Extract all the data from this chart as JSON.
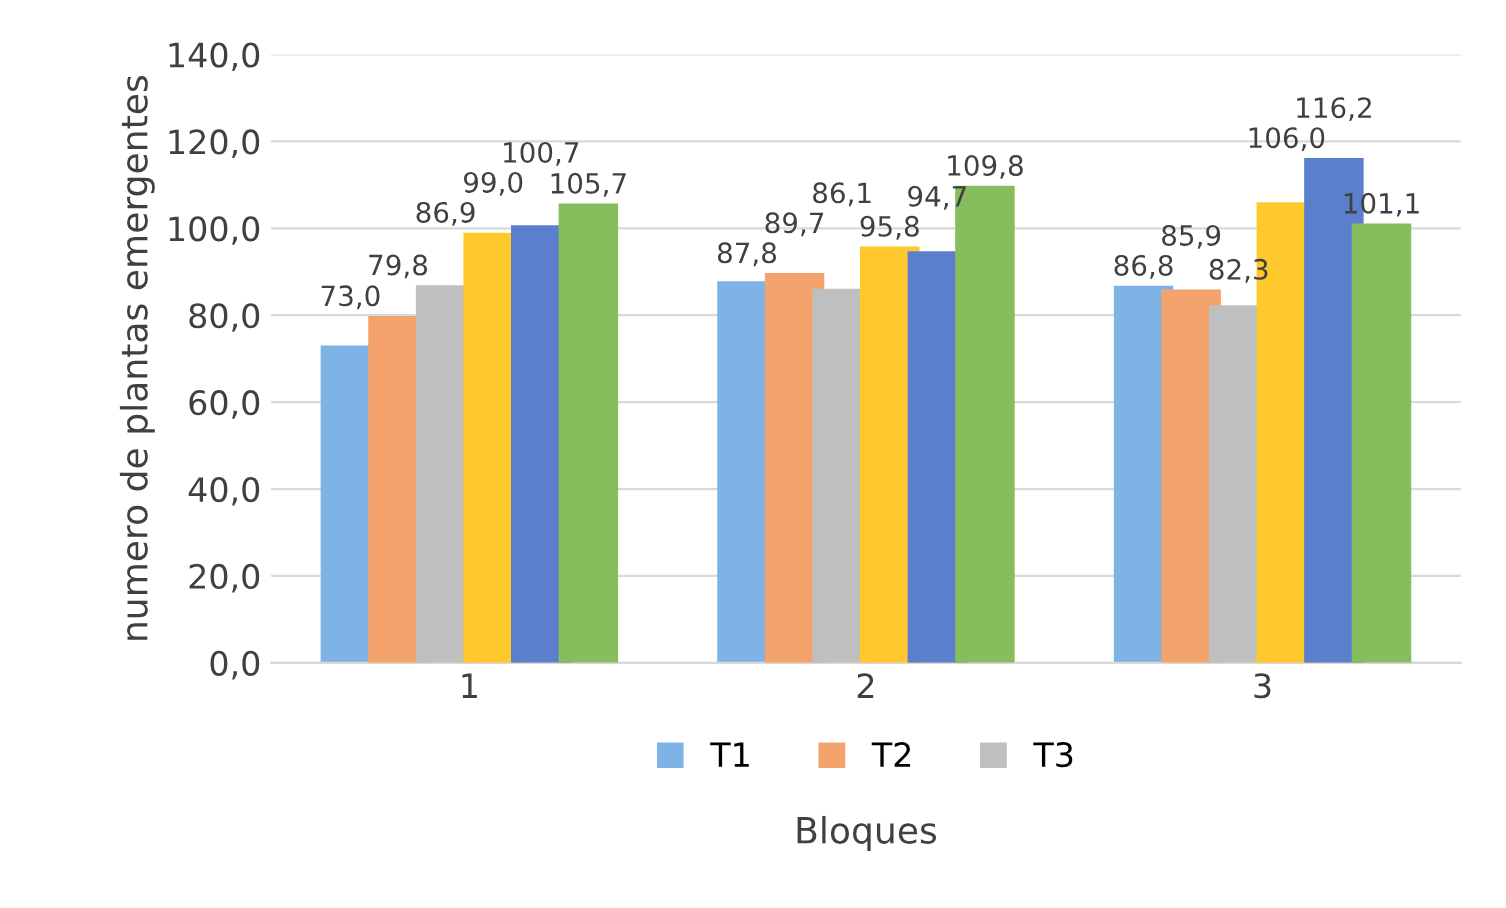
{
  "chart_data": {
    "type": "bar",
    "categories": [
      "1",
      "2",
      "3"
    ],
    "series": [
      {
        "name": "T1",
        "color": "#7fb2e5",
        "values": [
          73.0,
          87.8,
          86.8
        ],
        "value_labels": [
          "73,0",
          "87,8",
          "86,8"
        ]
      },
      {
        "name": "T2",
        "color": "#f4a36c",
        "values": [
          79.8,
          89.7,
          85.9
        ],
        "value_labels": [
          "79,8",
          "89,7",
          "85,9"
        ]
      },
      {
        "name": "T3",
        "color": "#bfbfbf",
        "values": [
          86.9,
          86.1,
          82.3
        ],
        "value_labels": [
          "86,9",
          "86,1",
          "82,3"
        ]
      },
      {
        "color": "#ffc92e",
        "values": [
          99.0,
          95.8,
          106.0
        ],
        "value_labels": [
          "99,0",
          "95,8",
          "106,0"
        ]
      },
      {
        "color": "#5b7fcc",
        "values": [
          100.7,
          94.7,
          116.2
        ],
        "value_labels": [
          "100,7",
          "94,7",
          "116,2"
        ]
      },
      {
        "color": "#86be5e",
        "values": [
          105.7,
          109.8,
          101.1
        ],
        "value_labels": [
          "105,7",
          "109,8",
          "101,1"
        ]
      }
    ],
    "ylim": [
      0,
      140
    ],
    "yticks": [
      {
        "value": 0,
        "label": "0,0"
      },
      {
        "value": 20,
        "label": "20,0"
      },
      {
        "value": 40,
        "label": "40,0"
      },
      {
        "value": 60,
        "label": "60,0"
      },
      {
        "value": 80,
        "label": "80,0"
      },
      {
        "value": 100,
        "label": "100,0"
      },
      {
        "value": 120,
        "label": "120,0"
      },
      {
        "value": 140,
        "label": "140,0"
      }
    ],
    "xlabel": "Bloques",
    "ylabel": "numero de plantas emergentes",
    "grid": "y",
    "legend": "bottom"
  }
}
